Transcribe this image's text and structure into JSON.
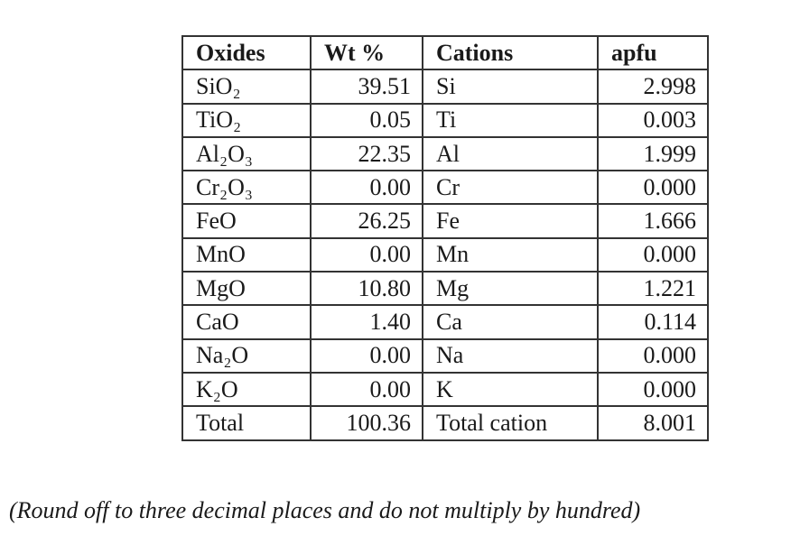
{
  "table": {
    "headers": {
      "oxides": "Oxides",
      "wt": "Wt %",
      "cations": "Cations",
      "apfu": "apfu"
    },
    "rows": [
      {
        "oxide": "SiO₂",
        "wt": "39.51",
        "cation": "Si",
        "apfu": "2.998"
      },
      {
        "oxide": "TiO₂",
        "wt": "0.05",
        "cation": "Ti",
        "apfu": "0.003"
      },
      {
        "oxide": "Al₂O₃",
        "wt": "22.35",
        "cation": "Al",
        "apfu": "1.999"
      },
      {
        "oxide": "Cr₂O₃",
        "wt": "0.00",
        "cation": "Cr",
        "apfu": "0.000"
      },
      {
        "oxide": "FeO",
        "wt": "26.25",
        "cation": "Fe",
        "apfu": "1.666"
      },
      {
        "oxide": "MnO",
        "wt": "0.00",
        "cation": "Mn",
        "apfu": "0.000"
      },
      {
        "oxide": "MgO",
        "wt": "10.80",
        "cation": "Mg",
        "apfu": "1.221"
      },
      {
        "oxide": "CaO",
        "wt": "1.40",
        "cation": "Ca",
        "apfu": "0.114"
      },
      {
        "oxide": "Na₂O",
        "wt": "0.00",
        "cation": "Na",
        "apfu": "0.000"
      },
      {
        "oxide": "K₂O",
        "wt": "0.00",
        "cation": "K",
        "apfu": "0.000"
      },
      {
        "oxide": "Total",
        "wt": "100.36",
        "cation": "Total cation",
        "apfu": "8.001"
      }
    ]
  },
  "note": "(Round off to three decimal places and do not multiply by hundred)"
}
